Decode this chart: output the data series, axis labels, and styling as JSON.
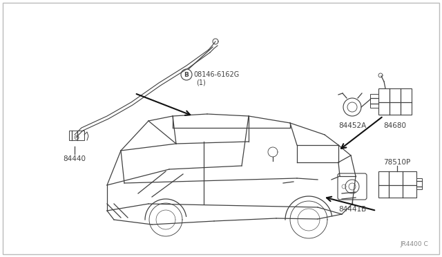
{
  "bg_color": "#ffffff",
  "line_color": "#404040",
  "text_color": "#404040",
  "arrow_color": "#111111",
  "label_84440": "84440",
  "label_bolt": "08146-6162G",
  "label_bolt2": "(1)",
  "label_B": "B",
  "label_84452A": "84452A",
  "label_84680": "84680",
  "label_78510P": "78510P",
  "label_84441B": "84441B",
  "label_bottom": "JR4400 C",
  "figw": 6.4,
  "figh": 3.72,
  "dpi": 100
}
